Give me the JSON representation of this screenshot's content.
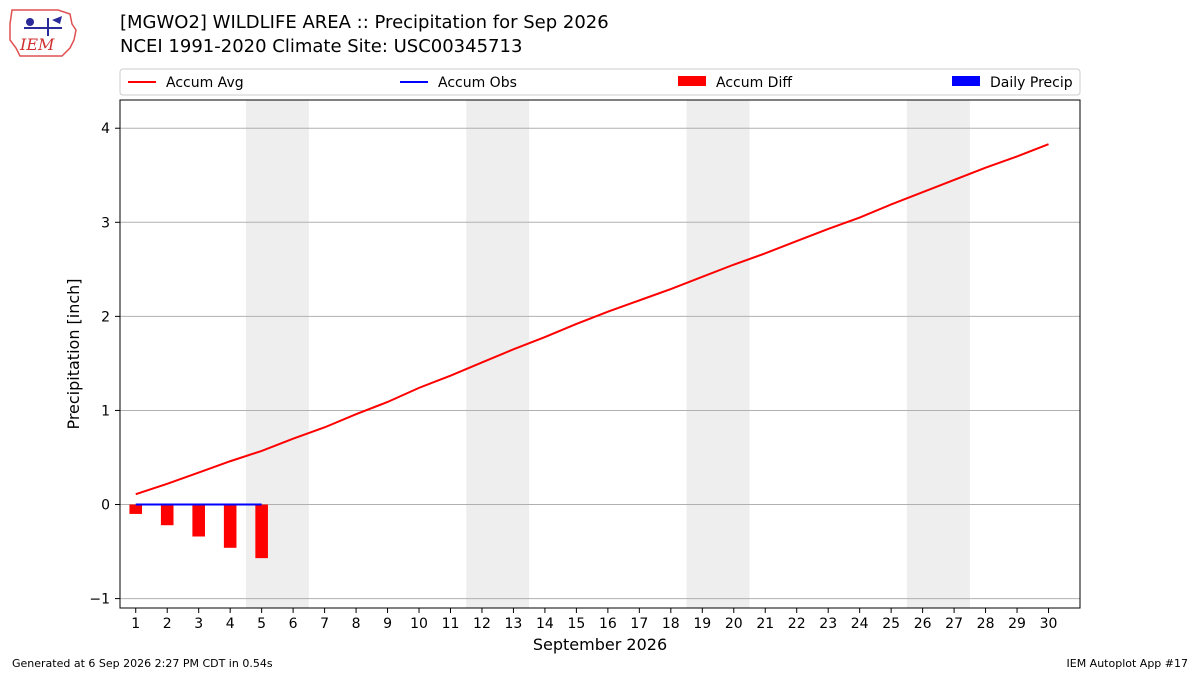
{
  "header": {
    "title_line1": "[MGWO2] WILDLIFE AREA :: Precipitation for Sep 2026",
    "title_line2": "NCEI 1991-2020 Climate Site: USC00345713",
    "logo_text": "IEM"
  },
  "footer": {
    "generated": "Generated at 6 Sep 2026 2:27 PM CDT in 0.54s",
    "app": "IEM Autoplot App #17"
  },
  "colors": {
    "accum_avg": "#ff0000",
    "accum_obs": "#0000ff",
    "accum_diff": "#ff0000",
    "daily_precip": "#0000ff",
    "weekend_shade": "#eeeeee",
    "grid": "#b0b0b0"
  },
  "chart_data": {
    "type": "line",
    "title": "[MGWO2] WILDLIFE AREA :: Precipitation for Sep 2026",
    "subtitle": "NCEI 1991-2020 Climate Site: USC00345713",
    "xlabel": "September 2026",
    "ylabel": "Precipitation [inch]",
    "xlim": [
      0.5,
      31.0
    ],
    "ylim": [
      -1.1,
      4.3
    ],
    "yticks": [
      -1,
      0,
      1,
      2,
      3,
      4
    ],
    "xticks": [
      1,
      2,
      3,
      4,
      5,
      6,
      7,
      8,
      9,
      10,
      11,
      12,
      13,
      14,
      15,
      16,
      17,
      18,
      19,
      20,
      21,
      22,
      23,
      24,
      25,
      26,
      27,
      28,
      29,
      30
    ],
    "grid": "horizontal",
    "legend_placement": "top",
    "weekend_shading": [
      [
        5,
        6
      ],
      [
        12,
        13
      ],
      [
        19,
        20
      ],
      [
        26,
        27
      ]
    ],
    "legend": [
      "Accum Avg",
      "Accum Obs",
      "Accum Diff",
      "Daily Precip"
    ],
    "series": [
      {
        "name": "Accum Avg",
        "type": "line",
        "x": [
          1,
          2,
          3,
          4,
          5,
          6,
          7,
          8,
          9,
          10,
          11,
          12,
          13,
          14,
          15,
          16,
          17,
          18,
          19,
          20,
          21,
          22,
          23,
          24,
          25,
          26,
          27,
          28,
          29,
          30
        ],
        "values": [
          0.11,
          0.22,
          0.34,
          0.46,
          0.57,
          0.7,
          0.82,
          0.96,
          1.09,
          1.24,
          1.37,
          1.51,
          1.65,
          1.78,
          1.92,
          2.05,
          2.17,
          2.29,
          2.42,
          2.55,
          2.67,
          2.8,
          2.93,
          3.05,
          3.19,
          3.32,
          3.45,
          3.58,
          3.7,
          3.83
        ]
      },
      {
        "name": "Accum Obs",
        "type": "line",
        "x": [
          1,
          2,
          3,
          4,
          5
        ],
        "values": [
          0,
          0,
          0,
          0,
          0
        ]
      },
      {
        "name": "Accum Diff",
        "type": "bar",
        "x": [
          1,
          2,
          3,
          4,
          5
        ],
        "values": [
          -0.1,
          -0.22,
          -0.34,
          -0.46,
          -0.57
        ]
      },
      {
        "name": "Daily Precip",
        "type": "bar",
        "x": [],
        "values": []
      }
    ]
  }
}
